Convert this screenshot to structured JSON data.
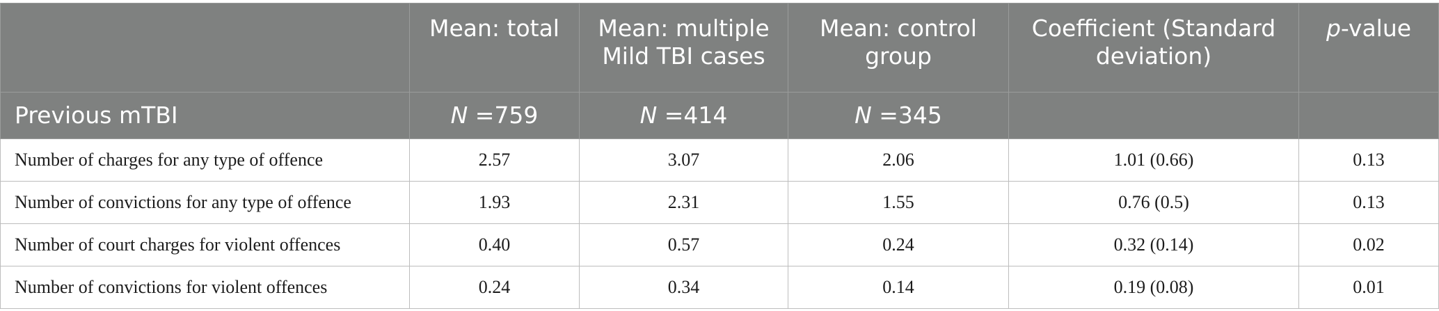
{
  "header": {
    "columns": [
      "",
      "Mean: total",
      "Mean: multiple Mild TBI cases",
      "Mean: control group",
      "Coefficient (Standard deviation)",
      "-value"
    ],
    "pvalue_prefix": "p",
    "subheader": {
      "label": "Previous mTBI",
      "n_prefix": "N",
      "n_values": [
        " =759",
        " =414",
        " =345"
      ]
    }
  },
  "rows": [
    [
      "Number of charges for any type of offence",
      "2.57",
      "3.07",
      "2.06",
      "1.01 (0.66)",
      "0.13"
    ],
    [
      "Number of convictions for any type of offence",
      "1.93",
      "2.31",
      "1.55",
      "0.76 (0.5)",
      "0.13"
    ],
    [
      "Number of court charges for violent offences",
      "0.40",
      "0.57",
      "0.24",
      "0.32 (0.14)",
      "0.02"
    ],
    [
      "Number of convictions for violent offences",
      "0.24",
      "0.34",
      "0.14",
      "0.19 (0.08)",
      "0.01"
    ]
  ]
}
